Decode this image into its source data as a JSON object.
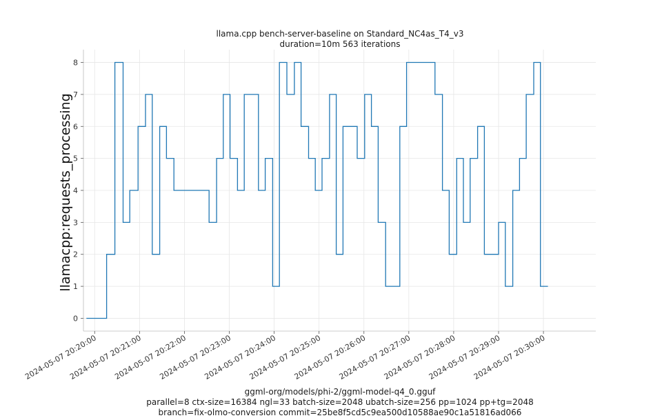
{
  "chart_data": {
    "type": "line",
    "title": "llama.cpp bench-server-baseline on Standard_NC4as_T4_v3",
    "subtitle": "duration=10m 563 iterations",
    "ylabel": "llamacpp:requests_processing",
    "xlabel": "",
    "ylim": [
      -0.4,
      8.4
    ],
    "xlim": [
      "2024-05-07 20:19:45",
      "2024-05-07 20:31:10"
    ],
    "yticks": [
      0,
      1,
      2,
      3,
      4,
      5,
      6,
      7,
      8
    ],
    "xticks": [
      "2024-05-07 20:20:00",
      "2024-05-07 20:21:00",
      "2024-05-07 20:22:00",
      "2024-05-07 20:23:00",
      "2024-05-07 20:24:00",
      "2024-05-07 20:25:00",
      "2024-05-07 20:26:00",
      "2024-05-07 20:27:00",
      "2024-05-07 20:28:00",
      "2024-05-07 20:29:00",
      "2024-05-07 20:30:00"
    ],
    "grid": true,
    "series": [
      {
        "color": "#1f77b4",
        "step": true,
        "points": [
          [
            "2024-05-07 20:19:49",
            0
          ],
          [
            "2024-05-07 20:20:16",
            2
          ],
          [
            "2024-05-07 20:20:27",
            8
          ],
          [
            "2024-05-07 20:20:38",
            3
          ],
          [
            "2024-05-07 20:20:47",
            4
          ],
          [
            "2024-05-07 20:20:58",
            6
          ],
          [
            "2024-05-07 20:21:08",
            7
          ],
          [
            "2024-05-07 20:21:17",
            2
          ],
          [
            "2024-05-07 20:21:27",
            6
          ],
          [
            "2024-05-07 20:21:36",
            5
          ],
          [
            "2024-05-07 20:21:46",
            4
          ],
          [
            "2024-05-07 20:22:33",
            3
          ],
          [
            "2024-05-07 20:22:43",
            5
          ],
          [
            "2024-05-07 20:22:52",
            7
          ],
          [
            "2024-05-07 20:23:01",
            5
          ],
          [
            "2024-05-07 20:23:11",
            4
          ],
          [
            "2024-05-07 20:23:20",
            7
          ],
          [
            "2024-05-07 20:23:39",
            4
          ],
          [
            "2024-05-07 20:23:48",
            5
          ],
          [
            "2024-05-07 20:23:58",
            1
          ],
          [
            "2024-05-07 20:24:07",
            8
          ],
          [
            "2024-05-07 20:24:17",
            7
          ],
          [
            "2024-05-07 20:24:27",
            8
          ],
          [
            "2024-05-07 20:24:36",
            6
          ],
          [
            "2024-05-07 20:24:46",
            5
          ],
          [
            "2024-05-07 20:24:55",
            4
          ],
          [
            "2024-05-07 20:25:04",
            5
          ],
          [
            "2024-05-07 20:25:14",
            7
          ],
          [
            "2024-05-07 20:25:23",
            2
          ],
          [
            "2024-05-07 20:25:32",
            6
          ],
          [
            "2024-05-07 20:25:51",
            5
          ],
          [
            "2024-05-07 20:26:01",
            7
          ],
          [
            "2024-05-07 20:26:10",
            6
          ],
          [
            "2024-05-07 20:26:19",
            3
          ],
          [
            "2024-05-07 20:26:29",
            1
          ],
          [
            "2024-05-07 20:26:48",
            6
          ],
          [
            "2024-05-07 20:26:57",
            8
          ],
          [
            "2024-05-07 20:27:35",
            7
          ],
          [
            "2024-05-07 20:27:45",
            4
          ],
          [
            "2024-05-07 20:27:54",
            2
          ],
          [
            "2024-05-07 20:28:04",
            5
          ],
          [
            "2024-05-07 20:28:13",
            3
          ],
          [
            "2024-05-07 20:28:22",
            5
          ],
          [
            "2024-05-07 20:28:32",
            6
          ],
          [
            "2024-05-07 20:28:41",
            2
          ],
          [
            "2024-05-07 20:29:00",
            3
          ],
          [
            "2024-05-07 20:29:09",
            1
          ],
          [
            "2024-05-07 20:29:19",
            4
          ],
          [
            "2024-05-07 20:29:28",
            5
          ],
          [
            "2024-05-07 20:29:37",
            7
          ],
          [
            "2024-05-07 20:29:47",
            8
          ],
          [
            "2024-05-07 20:29:56",
            1
          ],
          [
            "2024-05-07 20:30:06",
            1
          ]
        ]
      }
    ]
  },
  "footer": {
    "model": "ggml-org/models/phi-2/ggml-model-q4_0.gguf",
    "params": "parallel=8 ctx-size=16384 ngl=33 batch-size=2048 ubatch-size=256 pp=1024 pp+tg=2048",
    "branch": "branch=fix-olmo-conversion commit=25be8f5cd5c9ea500d10588ae90c1a51816ad066"
  }
}
